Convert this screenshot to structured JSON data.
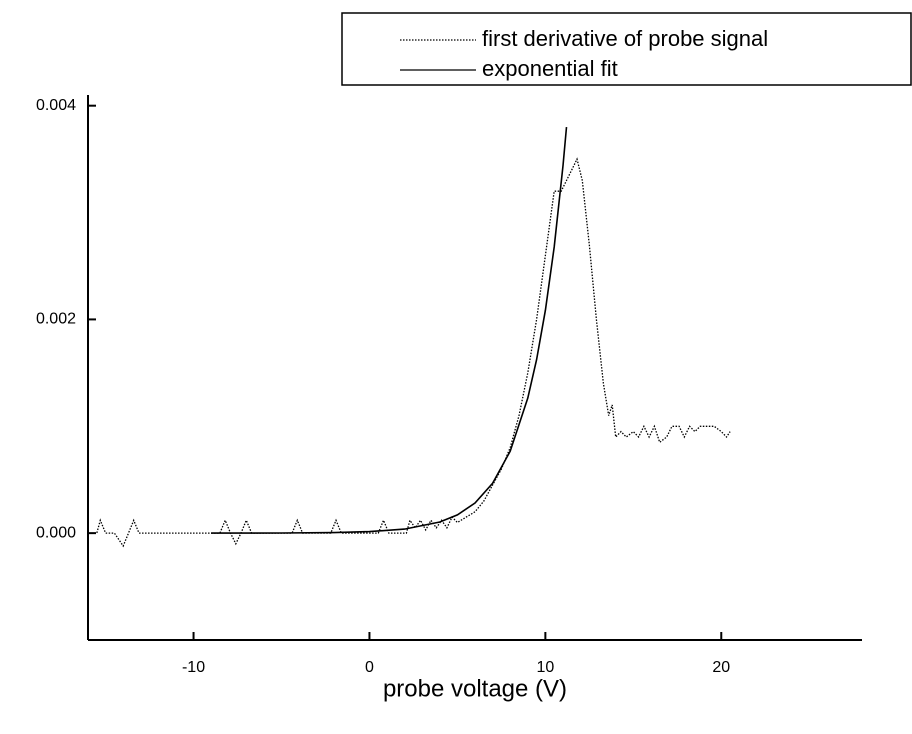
{
  "chart_data": {
    "type": "line",
    "xlabel": "probe voltage (V)",
    "xlim": [
      -16,
      28
    ],
    "xticks": [
      -10,
      0,
      10,
      20
    ],
    "ylim": [
      -0.001,
      0.0041
    ],
    "yticks": [
      {
        "value": 0,
        "label": "0.000"
      },
      0.002,
      0.004
    ],
    "grid": false,
    "legend": "top-right",
    "series": [
      {
        "name": "first derivative of probe signal",
        "color": "#000000",
        "style": "dotted",
        "x": [
          -16,
          -15.5,
          -15.3,
          -15,
          -14.5,
          -14,
          -13.7,
          -13.4,
          -13.1,
          -9,
          -8.5,
          -8.2,
          -7.9,
          -7.6,
          -7.3,
          -7,
          -6.7,
          -4.4,
          -4.1,
          -3.8,
          -2.2,
          -1.9,
          -1.6,
          0.5,
          0.8,
          1.1,
          2.1,
          2.3,
          2.6,
          2.9,
          3.2,
          3.5,
          3.8,
          4.1,
          4.4,
          4.7,
          5.0,
          5.5,
          6.0,
          6.5,
          7.0,
          7.5,
          8.0,
          8.5,
          9.0,
          9.5,
          10.0,
          10.5,
          10.9,
          11.2,
          11.5,
          11.8,
          12.1,
          12.5,
          12.9,
          13.3,
          13.6,
          13.8,
          14.0,
          14.3,
          14.6,
          15.0,
          15.3,
          15.6,
          15.9,
          16.2,
          16.5,
          16.9,
          17.2,
          17.6,
          17.9,
          18.2,
          18.5,
          18.8,
          19.2,
          19.6,
          20.0,
          20.3,
          20.5
        ],
        "values": [
          0,
          0,
          0.00012,
          0,
          0,
          -0.00012,
          0,
          0.00012,
          0,
          0,
          0,
          0.00012,
          0,
          -0.0001,
          0,
          0.00012,
          0,
          0,
          0.00012,
          0,
          0,
          0.00012,
          0,
          0,
          0.00012,
          0,
          0,
          0.00012,
          5e-05,
          0.00012,
          3e-05,
          0.00012,
          5e-05,
          0.00012,
          5e-05,
          0.00015,
          0.0001,
          0.00015,
          0.0002,
          0.0003,
          0.00045,
          0.0006,
          0.0008,
          0.0011,
          0.0015,
          0.002,
          0.0026,
          0.0032,
          0.0032,
          0.0033,
          0.0034,
          0.0035,
          0.0033,
          0.0027,
          0.002,
          0.0014,
          0.0011,
          0.0012,
          0.0009,
          0.00095,
          0.0009,
          0.00095,
          0.0009,
          0.001,
          0.0009,
          0.001,
          0.00085,
          0.0009,
          0.001,
          0.001,
          0.0009,
          0.001,
          0.00095,
          0.001,
          0.001,
          0.001,
          0.00095,
          0.0009,
          0.00095
        ]
      },
      {
        "name": "exponential fit",
        "color": "#000000",
        "style": "solid",
        "x": [
          -9,
          -5,
          -2,
          0,
          2,
          4,
          5,
          6,
          7,
          8,
          9,
          9.5,
          10,
          10.5,
          11,
          11.2
        ],
        "values": [
          0,
          1.1e-06,
          5.2e-06,
          1.4e-05,
          3.8e-05,
          0.000104,
          0.000171,
          0.000282,
          0.000466,
          0.000767,
          0.001265,
          0.001624,
          0.002086,
          0.002678,
          0.003438,
          0.0038
        ]
      }
    ]
  }
}
